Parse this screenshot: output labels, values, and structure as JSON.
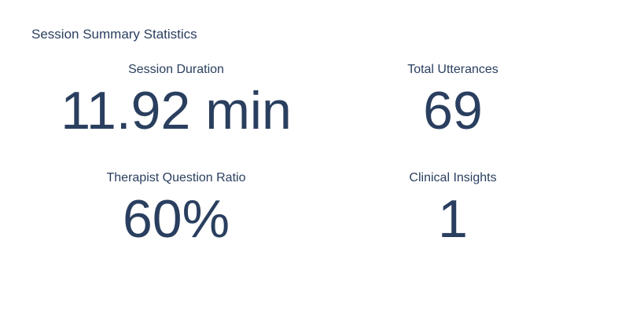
{
  "title": "Session Summary Statistics",
  "metrics": [
    {
      "label": "Session Duration",
      "value": "11.92 min"
    },
    {
      "label": "Total Utterances",
      "value": "69"
    },
    {
      "label": "Therapist Question Ratio",
      "value": "60%"
    },
    {
      "label": "Clinical Insights",
      "value": "1"
    }
  ],
  "colors": {
    "text": "#2a3f5f",
    "background": "#ffffff"
  }
}
